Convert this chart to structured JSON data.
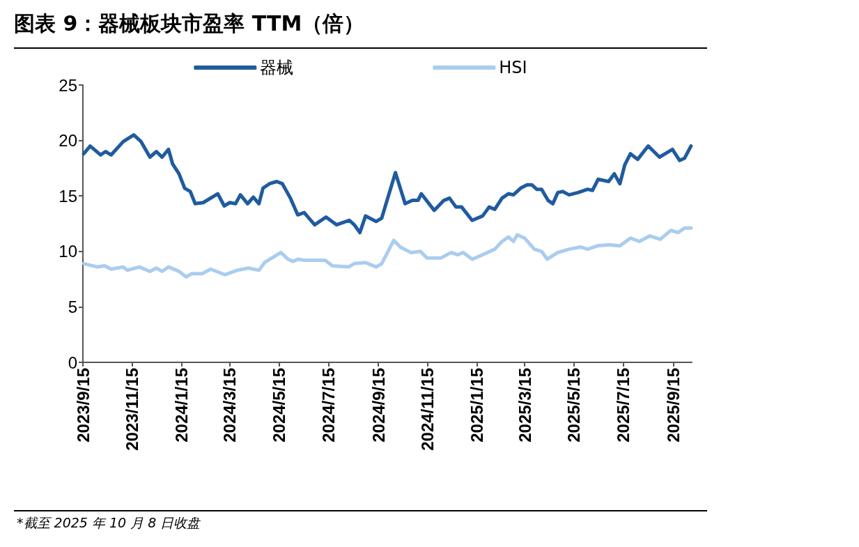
{
  "chart_data": {
    "type": "line",
    "title": "图表 9：器械板块市盈率 TTM（倍）",
    "annotations": [
      "*截至 2025 年 10 月 8 日收盘"
    ],
    "xlim": [
      "2023-09-15",
      "2025-10-08"
    ],
    "xticks": [
      {
        "value": "2023-09-15",
        "label": "2023/9/15"
      },
      {
        "value": "2023-11-15",
        "label": "2023/11/15"
      },
      {
        "value": "2024-01-15",
        "label": "2024/1/15"
      },
      {
        "value": "2024-03-15",
        "label": "2024/3/15"
      },
      {
        "value": "2024-05-15",
        "label": "2024/5/15"
      },
      {
        "value": "2024-07-15",
        "label": "2024/7/15"
      },
      {
        "value": "2024-09-15",
        "label": "2024/9/15"
      },
      {
        "value": "2024-11-15",
        "label": "2024/11/15"
      },
      {
        "value": "2025-01-15",
        "label": "2025/1/15"
      },
      {
        "value": "2025-03-15",
        "label": "2025/3/15"
      },
      {
        "value": "2025-05-15",
        "label": "2025/5/15"
      },
      {
        "value": "2025-07-15",
        "label": "2025/7/15"
      },
      {
        "value": "2025-09-15",
        "label": "2025/9/15"
      }
    ],
    "ylim": [
      0,
      25
    ],
    "yticks": [
      0,
      5,
      10,
      15,
      20,
      25
    ],
    "grid": false,
    "legend": "top",
    "marker": "none",
    "line_style": "solid",
    "series": [
      {
        "name": "器械",
        "color": "#1f5b9e",
        "x": [
          "2023-09-16",
          "2023-09-24",
          "2023-10-07",
          "2023-10-13",
          "2023-10-20",
          "2023-11-04",
          "2023-11-17",
          "2023-11-26",
          "2023-12-07",
          "2023-12-15",
          "2023-12-22",
          "2023-12-30",
          "2024-01-04",
          "2024-01-12",
          "2024-01-19",
          "2024-01-26",
          "2024-02-01",
          "2024-02-11",
          "2024-02-29",
          "2024-03-08",
          "2024-03-15",
          "2024-03-22",
          "2024-03-28",
          "2024-04-06",
          "2024-04-13",
          "2024-04-20",
          "2024-04-25",
          "2024-05-03",
          "2024-05-12",
          "2024-05-19",
          "2024-05-29",
          "2024-06-07",
          "2024-06-15",
          "2024-06-28",
          "2024-07-12",
          "2024-07-25",
          "2024-08-10",
          "2024-08-16",
          "2024-08-23",
          "2024-08-30",
          "2024-09-04",
          "2024-09-12",
          "2024-09-19",
          "2024-10-06",
          "2024-10-18",
          "2024-10-27",
          "2024-11-03",
          "2024-11-07",
          "2024-11-23",
          "2024-12-05",
          "2024-12-12",
          "2024-12-20",
          "2024-12-27",
          "2025-01-09",
          "2025-01-22",
          "2025-01-30",
          "2025-02-06",
          "2025-02-15",
          "2025-02-23",
          "2025-03-01",
          "2025-03-10",
          "2025-03-18",
          "2025-03-24",
          "2025-03-30",
          "2025-04-05",
          "2025-04-13",
          "2025-04-19",
          "2025-04-25",
          "2025-05-01",
          "2025-05-09",
          "2025-05-20",
          "2025-06-01",
          "2025-06-07",
          "2025-06-14",
          "2025-06-27",
          "2025-07-04",
          "2025-07-11",
          "2025-07-17",
          "2025-07-24",
          "2025-08-02",
          "2025-08-15",
          "2025-08-29",
          "2025-09-05",
          "2025-09-14",
          "2025-09-23",
          "2025-09-29",
          "2025-10-07"
        ],
        "values": [
          18.8,
          19.5,
          18.7,
          19.0,
          18.7,
          19.9,
          20.5,
          19.9,
          18.5,
          19.0,
          18.5,
          19.2,
          17.9,
          17.0,
          15.7,
          15.4,
          14.3,
          14.4,
          15.2,
          14.1,
          14.4,
          14.3,
          15.1,
          14.3,
          14.9,
          14.3,
          15.7,
          16.1,
          16.3,
          16.1,
          14.8,
          13.3,
          13.5,
          12.4,
          13.1,
          12.4,
          12.8,
          12.4,
          11.7,
          13.2,
          13.0,
          12.7,
          13.0,
          17.1,
          14.3,
          14.6,
          14.6,
          15.2,
          13.7,
          14.6,
          14.8,
          14.0,
          14.0,
          12.8,
          13.2,
          14.0,
          13.8,
          14.8,
          15.2,
          15.1,
          15.7,
          16.0,
          16.0,
          15.6,
          15.6,
          14.6,
          14.3,
          15.3,
          15.4,
          15.1,
          15.3,
          15.6,
          15.5,
          16.5,
          16.3,
          17.0,
          16.1,
          17.8,
          18.8,
          18.3,
          19.5,
          18.5,
          18.8,
          19.2,
          18.2,
          18.4,
          19.5
        ]
      },
      {
        "name": "HSI",
        "color": "#a9cdee",
        "x": [
          "2023-09-16",
          "2023-10-03",
          "2023-10-12",
          "2023-10-20",
          "2023-11-04",
          "2023-11-09",
          "2023-11-24",
          "2023-12-07",
          "2023-12-15",
          "2023-12-22",
          "2023-12-30",
          "2024-01-12",
          "2024-01-21",
          "2024-01-28",
          "2024-02-10",
          "2024-02-20",
          "2024-03-09",
          "2024-03-24",
          "2024-04-07",
          "2024-04-20",
          "2024-04-27",
          "2024-05-08",
          "2024-05-17",
          "2024-05-26",
          "2024-06-01",
          "2024-06-08",
          "2024-06-15",
          "2024-07-11",
          "2024-07-20",
          "2024-08-09",
          "2024-08-16",
          "2024-08-30",
          "2024-09-12",
          "2024-09-19",
          "2024-10-04",
          "2024-10-12",
          "2024-10-25",
          "2024-11-06",
          "2024-11-14",
          "2024-12-01",
          "2024-12-14",
          "2024-12-22",
          "2024-12-29",
          "2025-01-09",
          "2025-01-22",
          "2025-02-06",
          "2025-02-15",
          "2025-02-23",
          "2025-03-01",
          "2025-03-06",
          "2025-03-15",
          "2025-03-27",
          "2025-04-05",
          "2025-04-12",
          "2025-04-25",
          "2025-05-09",
          "2025-05-23",
          "2025-06-01",
          "2025-06-13",
          "2025-06-27",
          "2025-07-11",
          "2025-07-24",
          "2025-08-04",
          "2025-08-17",
          "2025-08-30",
          "2025-09-12",
          "2025-09-21",
          "2025-09-29",
          "2025-10-07"
        ],
        "values": [
          8.9,
          8.6,
          8.7,
          8.4,
          8.6,
          8.3,
          8.6,
          8.2,
          8.5,
          8.2,
          8.6,
          8.2,
          7.7,
          8.0,
          8.0,
          8.4,
          7.9,
          8.3,
          8.5,
          8.3,
          9.0,
          9.5,
          9.9,
          9.3,
          9.1,
          9.3,
          9.2,
          9.2,
          8.7,
          8.6,
          8.9,
          9.0,
          8.6,
          8.9,
          11.0,
          10.4,
          9.9,
          10.0,
          9.4,
          9.4,
          9.9,
          9.7,
          9.9,
          9.3,
          9.7,
          10.2,
          10.9,
          11.3,
          10.9,
          11.5,
          11.2,
          10.2,
          10.0,
          9.3,
          9.9,
          10.2,
          10.4,
          10.2,
          10.5,
          10.6,
          10.5,
          11.2,
          10.9,
          11.4,
          11.1,
          11.9,
          11.7,
          12.1,
          12.1
        ]
      }
    ]
  }
}
